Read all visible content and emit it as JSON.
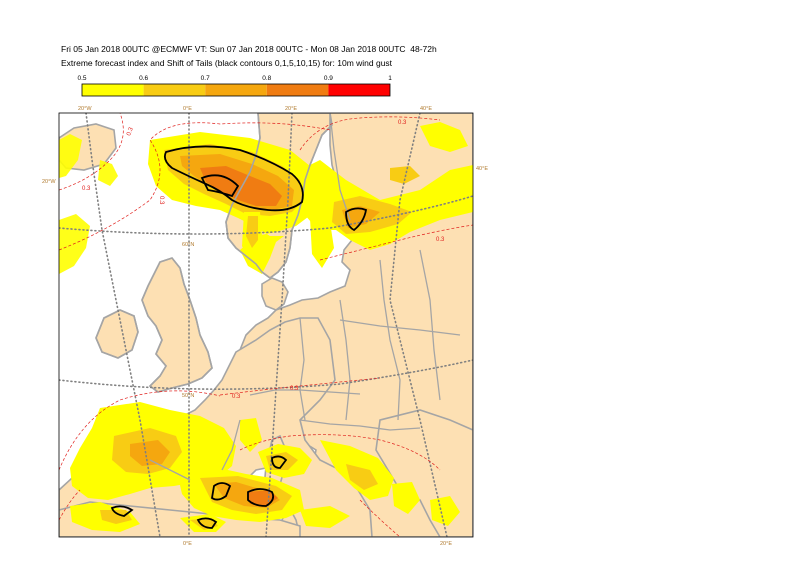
{
  "header": {
    "line1": "Fri 05 Jan 2018 00UTC @ECMWF VT: Sun 07 Jan 2018 00UTC - Mon 08 Jan 2018 00UTC  48-72h",
    "line2": "Extreme forecast index and Shift of Tails (black contours 0,1,5,10,15) for: 10m wind gust"
  },
  "legend": {
    "ticks": [
      "0.5",
      "0.6",
      "0.7",
      "0.8",
      "0.9",
      "1"
    ],
    "colors": [
      "#ffff00",
      "#f8cc14",
      "#f5a70f",
      "#f07c12",
      "#ff0000"
    ]
  },
  "colors": {
    "land_background": "#fde0b3",
    "sea": "#ffffff",
    "coastline": "#a5a5a5",
    "sot_contour": "#000000",
    "efi_03_contour": "#e0201d",
    "graticule": "#808080",
    "lonlat_labels": "#b07a2e"
  },
  "map": {
    "lon_labels_top": [
      "20°W",
      "0°E",
      "20°E",
      "40°E"
    ],
    "lon_labels_bottom": [
      "0°E",
      "20°E"
    ],
    "lat_labels": [
      "60°N",
      "50°N"
    ],
    "edge_labels": [
      "20°W",
      "40°E"
    ],
    "contour_label": "0.3"
  }
}
